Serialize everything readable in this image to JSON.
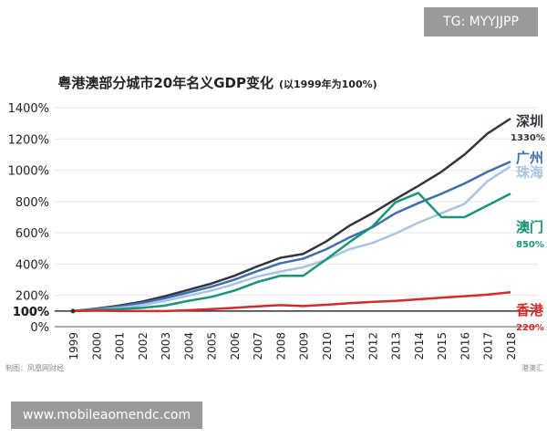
{
  "overlay": {
    "tg_label": "TG: MYYJJPP",
    "url_label": "www.mobileaomendc.com"
  },
  "chart_data": {
    "type": "line",
    "title": "粤港澳部分城市20年名义GDP变化",
    "subtitle": "(以1999年为100%)",
    "xlabel": "",
    "ylabel": "",
    "ylim": [
      0,
      1400
    ],
    "x": [
      "1999",
      "2000",
      "2001",
      "2002",
      "2003",
      "2004",
      "2005",
      "2006",
      "2007",
      "2008",
      "2009",
      "2010",
      "2011",
      "2012",
      "2013",
      "2014",
      "2015",
      "2016",
      "2017",
      "2018"
    ],
    "yticks": [
      "0%",
      "100%",
      "200%",
      "400%",
      "600%",
      "800%",
      "1000%",
      "1200%",
      "1400%"
    ],
    "ytick_values": [
      0,
      100,
      200,
      400,
      600,
      800,
      1000,
      1200,
      1400
    ],
    "baseline_label": "100%",
    "series": [
      {
        "name": "深圳",
        "end_label": "1330%",
        "color": "#2f3541",
        "values": [
          100,
          115,
          135,
          160,
          195,
          235,
          275,
          325,
          385,
          440,
          465,
          545,
          645,
          725,
          815,
          900,
          990,
          1100,
          1235,
          1330
        ]
      },
      {
        "name": "广州",
        "end_label": "",
        "color": "#3f6faa",
        "values": [
          100,
          113,
          130,
          152,
          182,
          218,
          255,
          300,
          355,
          405,
          435,
          495,
          570,
          635,
          725,
          790,
          850,
          915,
          990,
          1055
        ]
      },
      {
        "name": "珠海",
        "end_label": "",
        "color": "#a8c4e0",
        "values": [
          100,
          108,
          120,
          138,
          165,
          198,
          230,
          272,
          320,
          352,
          380,
          428,
          495,
          535,
          595,
          665,
          725,
          785,
          930,
          1025
        ]
      },
      {
        "name": "澳门",
        "end_label": "850%",
        "color": "#1a9478",
        "values": [
          100,
          107,
          112,
          120,
          135,
          165,
          190,
          230,
          285,
          325,
          325,
          430,
          540,
          640,
          795,
          855,
          700,
          700,
          775,
          850
        ]
      },
      {
        "name": "香港",
        "end_label": "220%",
        "color": "#d42b2b",
        "values": [
          100,
          103,
          100,
          100,
          100,
          105,
          112,
          120,
          130,
          138,
          132,
          140,
          150,
          158,
          165,
          175,
          185,
          195,
          205,
          220
        ]
      }
    ],
    "sources": [
      "制图：凤凰网财经",
      "港澳汇"
    ]
  }
}
